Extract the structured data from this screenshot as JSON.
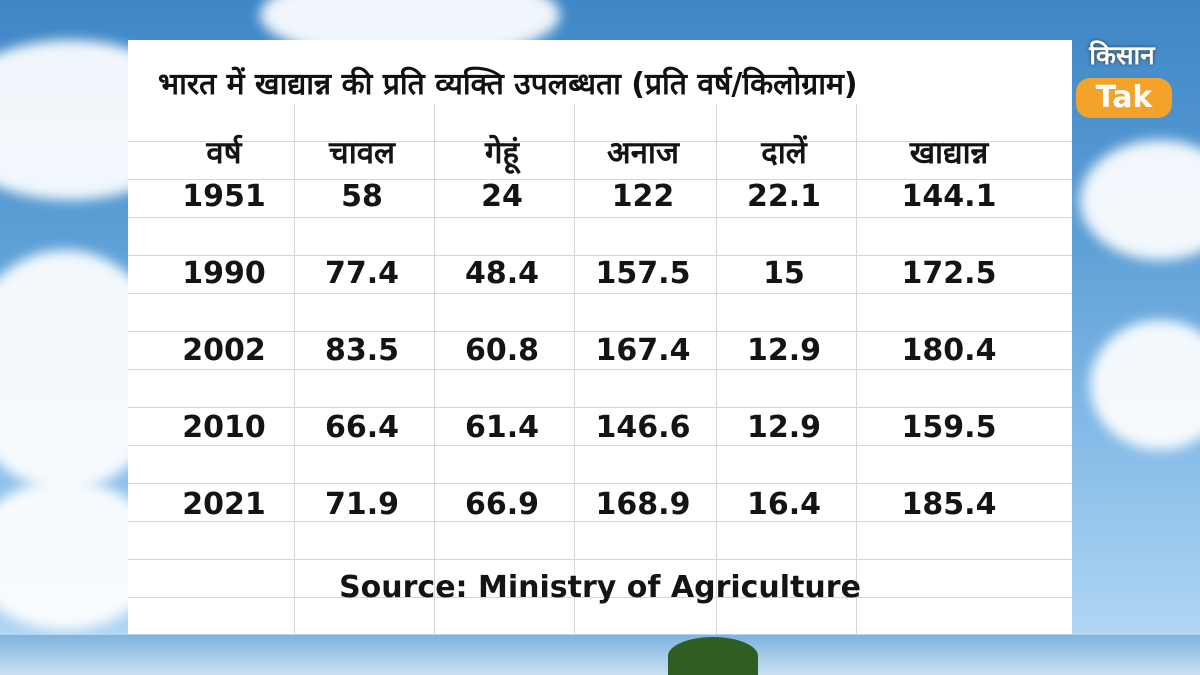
{
  "title": "भारत में खाद्यान्न की प्रति व्यक्ति उपलब्धता (प्रति वर्ष/किलोग्राम)",
  "logo": {
    "hindi": "किसान",
    "badge": "Tak"
  },
  "source": "Source: Ministry of Agriculture",
  "chart_data": {
    "type": "table",
    "title": "भारत में खाद्यान्न की प्रति व्यक्ति उपलब्धता (प्रति वर्ष/किलोग्राम)",
    "columns": [
      "वर्ष",
      "चावल",
      "गेहूं",
      "अनाज",
      "दालें",
      "खाद्यान्न"
    ],
    "rows": [
      [
        "1951",
        "58",
        "24",
        "122",
        "22.1",
        "144.1"
      ],
      [
        "1990",
        "77.4",
        "48.4",
        "157.5",
        "15",
        "172.5"
      ],
      [
        "2002",
        "83.5",
        "60.8",
        "167.4",
        "12.9",
        "180.4"
      ],
      [
        "2010",
        "66.4",
        "61.4",
        "146.6",
        "12.9",
        "159.5"
      ],
      [
        "2021",
        "71.9",
        "66.9",
        "168.9",
        "16.4",
        "185.4"
      ]
    ]
  }
}
